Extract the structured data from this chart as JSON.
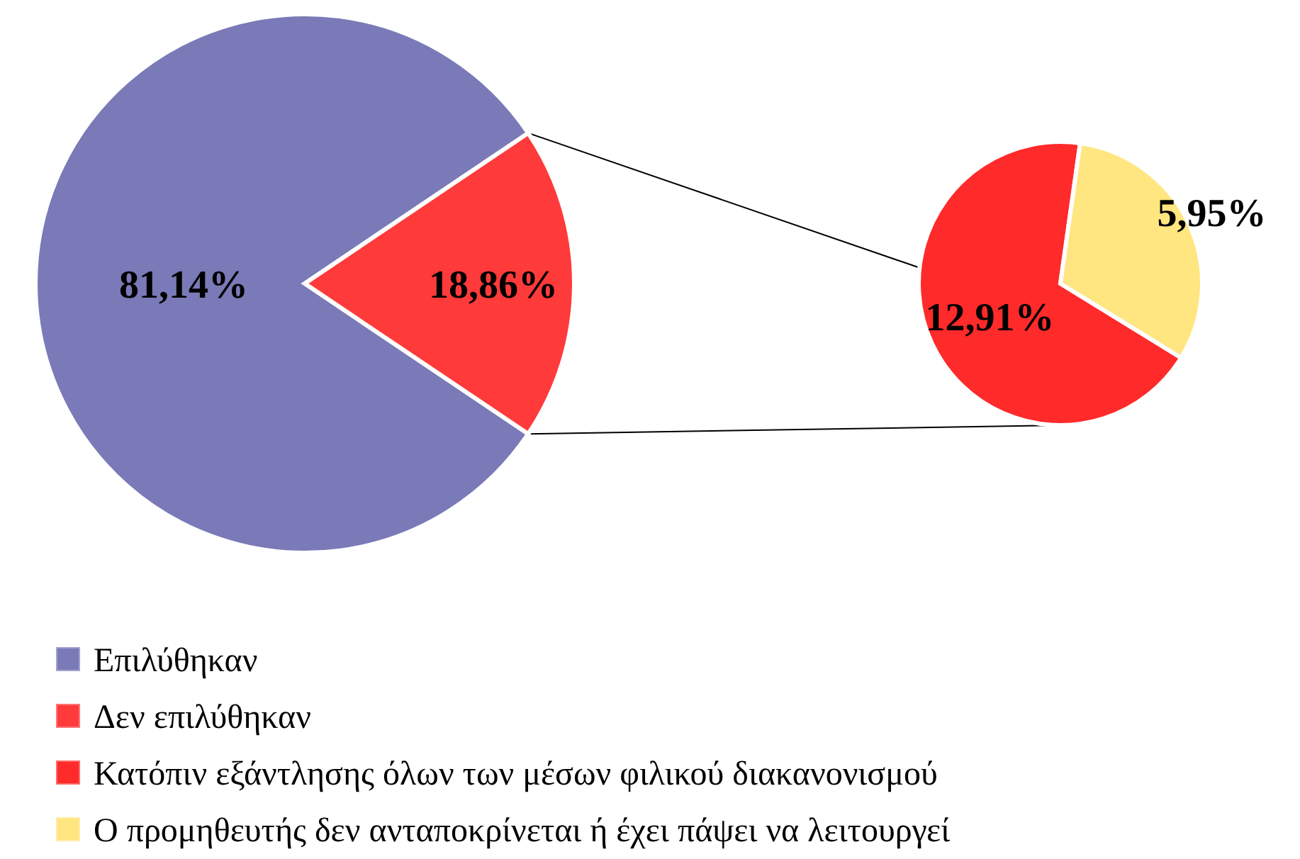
{
  "chart_data": [
    {
      "type": "pie",
      "categories": [
        "Επιλύθηκαν",
        "Δεν επιλύθηκαν"
      ],
      "values": [
        81.14,
        18.86
      ],
      "colors": [
        "#7a7ab8",
        "#ff3a3a"
      ],
      "value_labels": [
        "81,14%",
        "18,86%"
      ],
      "legend": "bottom"
    },
    {
      "type": "pie",
      "categories": [
        "Κατόπιν εξάντλησης όλων των μέσων φιλικού διακανονισμού",
        "Ο προμηθευτής δεν ανταποκρίνεται ή έχει πάψει να λειτουργεί"
      ],
      "values": [
        12.91,
        5.95
      ],
      "colors": [
        "#ff2a2a",
        "#ffe680"
      ],
      "value_labels": [
        "12,91%",
        "5,95%"
      ],
      "legend": "bottom"
    }
  ]
}
